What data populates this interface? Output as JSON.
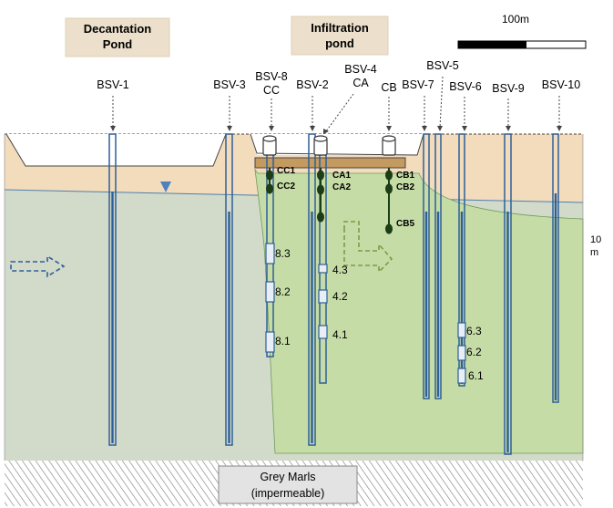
{
  "titles": {
    "decantation_line1": "Decantation",
    "decantation_line2": "Pond",
    "infiltration_line1": "Infiltration",
    "infiltration_line2": "pond"
  },
  "scale": {
    "horizontal": "100m",
    "vertical_value": "10",
    "vertical_unit": "m"
  },
  "wells": {
    "bsv1": "BSV-1",
    "bsv3": "BSV-3",
    "bsv8": "BSV-8",
    "bsv8_sub": "CC",
    "bsv2": "BSV-2",
    "bsv4": "BSV-4",
    "bsv4_sub": "CA",
    "cb": "CB",
    "bsv7": "BSV-7",
    "bsv5": "BSV-5",
    "bsv6": "BSV-6",
    "bsv9": "BSV-9",
    "bsv10": "BSV-10"
  },
  "sensors": {
    "cc1": "CC1",
    "cc2": "CC2",
    "ca1": "CA1",
    "ca2": "CA2",
    "cb1": "CB1",
    "cb2": "CB2",
    "cb5": "CB5"
  },
  "screens": {
    "s81": "8.1",
    "s82": "8.2",
    "s83": "8.3",
    "s41": "4.1",
    "s42": "4.2",
    "s43": "4.3",
    "s61": "6.1",
    "s62": "6.2",
    "s63": "6.3"
  },
  "base": {
    "line1": "Grey Marls",
    "line2": "(impermeable)"
  },
  "colors": {
    "sand": "#f3dcbc",
    "aquifer": "#d2dac9",
    "plume": "#c6dca6",
    "screen": "#2e5f99",
    "sensor": "#1d3d17"
  }
}
